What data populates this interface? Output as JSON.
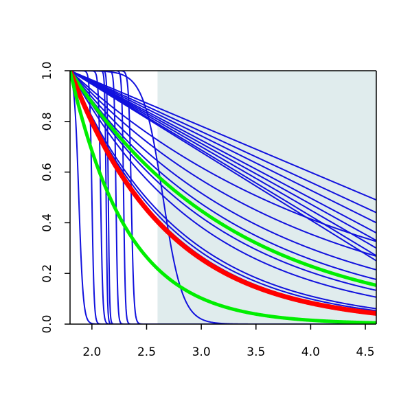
{
  "chart_data": {
    "type": "line",
    "title": "",
    "xlabel": "",
    "ylabel": "",
    "xlim": [
      1.8,
      4.6
    ],
    "ylim": [
      0.0,
      1.0
    ],
    "grid": false,
    "x_ticks": [
      "2.0",
      "2.5",
      "3.0",
      "3.5",
      "4.0",
      "4.5"
    ],
    "y_ticks": [
      "0.0",
      "0.2",
      "0.4",
      "0.6",
      "0.8",
      "1.0"
    ],
    "shaded_region": {
      "x": [
        2.6,
        4.6
      ],
      "color": "#e0eced"
    },
    "colors": {
      "blue": "#1111dd",
      "red": "#ff0000",
      "green": "#00ee00"
    },
    "series": [
      {
        "kind": "linear",
        "color": "blue",
        "width": 2,
        "end": 0.49
      },
      {
        "kind": "linear",
        "color": "blue",
        "width": 2,
        "end": 0.44
      },
      {
        "kind": "linear",
        "color": "blue",
        "width": 2,
        "end": 0.4
      },
      {
        "kind": "linear",
        "color": "blue",
        "width": 2,
        "end": 0.36
      },
      {
        "kind": "linear",
        "color": "blue",
        "width": 2,
        "end": 0.33
      },
      {
        "kind": "linear",
        "color": "blue",
        "width": 2,
        "end": 0.3
      },
      {
        "kind": "linear",
        "color": "blue",
        "width": 2,
        "end": 0.27
      },
      {
        "kind": "linear",
        "color": "blue",
        "width": 2,
        "end": 0.25
      },
      {
        "kind": "exp",
        "color": "blue",
        "width": 2,
        "k": 0.4
      },
      {
        "kind": "exp",
        "color": "blue",
        "width": 2,
        "k": 0.47
      },
      {
        "kind": "exp",
        "color": "blue",
        "width": 2,
        "k": 0.55
      },
      {
        "kind": "exp",
        "color": "blue",
        "width": 2,
        "k": 0.62
      },
      {
        "kind": "exp",
        "color": "blue",
        "width": 2,
        "k": 0.72
      },
      {
        "kind": "exp",
        "color": "blue",
        "width": 2,
        "k": 0.8
      },
      {
        "kind": "exp",
        "color": "blue",
        "width": 2,
        "k": 1.0
      },
      {
        "kind": "exp",
        "color": "blue",
        "width": 2,
        "k": 1.05
      },
      {
        "kind": "exp",
        "color": "blue",
        "width": 2,
        "k": 1.1
      },
      {
        "kind": "logistic",
        "color": "blue",
        "width": 2,
        "x0": 2.65,
        "s": 0.09
      },
      {
        "kind": "logistic",
        "color": "blue",
        "width": 2,
        "x0": 2.36,
        "s": 0.012
      },
      {
        "kind": "logistic",
        "color": "blue",
        "width": 2,
        "x0": 2.29,
        "s": 0.008
      },
      {
        "kind": "logistic",
        "color": "blue",
        "width": 2,
        "x0": 2.22,
        "s": 0.008
      },
      {
        "kind": "logistic",
        "color": "blue",
        "width": 2,
        "x0": 2.15,
        "s": 0.006
      },
      {
        "kind": "logistic",
        "color": "blue",
        "width": 2,
        "x0": 2.13,
        "s": 0.006
      },
      {
        "kind": "logistic",
        "color": "blue",
        "width": 2,
        "x0": 2.08,
        "s": 0.01
      },
      {
        "kind": "logistic",
        "color": "blue",
        "width": 2,
        "x0": 2.0,
        "s": 0.01
      },
      {
        "kind": "logistic",
        "color": "blue",
        "width": 2,
        "x0": 1.88,
        "s": 0.02
      },
      {
        "kind": "exp",
        "color": "green",
        "width": 5,
        "k": 0.67
      },
      {
        "kind": "exp",
        "color": "red",
        "width": 7,
        "k": 1.13
      },
      {
        "kind": "exp",
        "color": "green",
        "width": 5,
        "k": 1.9
      }
    ]
  }
}
